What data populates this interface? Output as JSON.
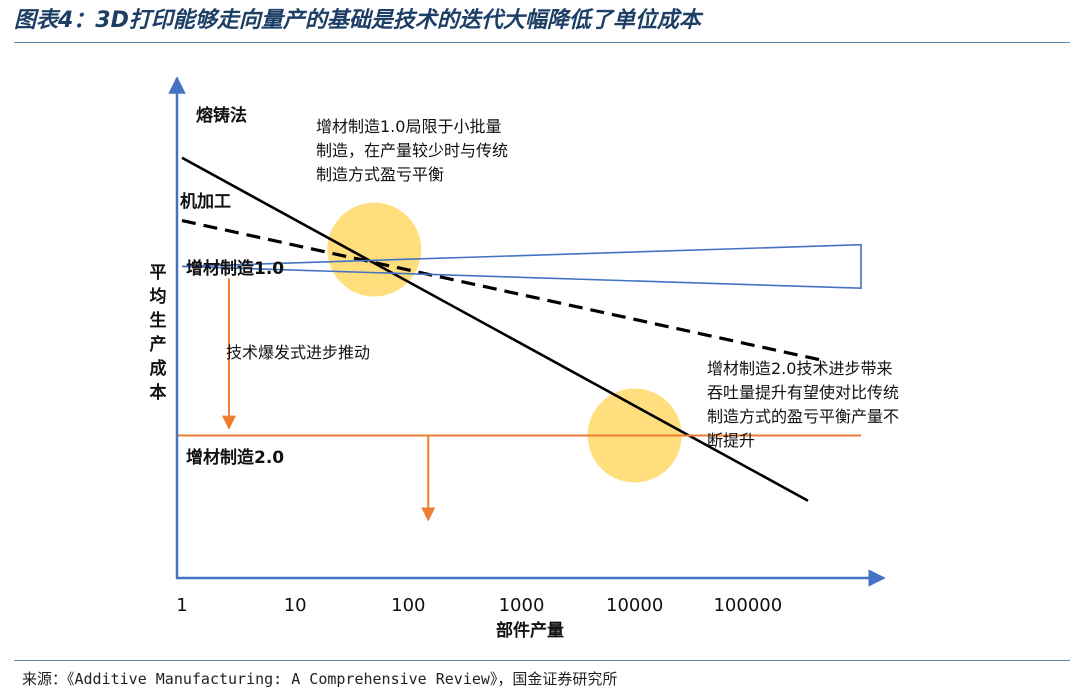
{
  "title": "图表4：3D打印能够走向量产的基础是技术的迭代大幅降低了单位成本",
  "source": "来源：《Additive Manufacturing: A Comprehensive Review》，国金证券研究所",
  "colors": {
    "title": "#1d3f66",
    "axis": "#4472c4",
    "am1": "#4472c4",
    "am2": "#ed7d31",
    "casting": "#000000",
    "machining": "#000000",
    "highlight": "#ffd966"
  },
  "chart_data": {
    "type": "line",
    "xscale": "log",
    "xlabel": "部件产量",
    "ylabel": "平均生产成本",
    "xticks": [
      {
        "value": 1,
        "label": "1"
      },
      {
        "value": 10,
        "label": "10"
      },
      {
        "value": 100,
        "label": "100"
      },
      {
        "value": 1000,
        "label": "1000"
      },
      {
        "value": 10000,
        "label": "10000"
      },
      {
        "value": 100000,
        "label": "100000"
      }
    ],
    "xlim": [
      1,
      1000000
    ],
    "ylim": [
      0,
      100
    ],
    "grid": false,
    "series": [
      {
        "name": "熔铸法",
        "style": "solid",
        "color": "#000000",
        "points": [
          [
            1,
            87
          ],
          [
            340000,
            16
          ]
        ]
      },
      {
        "name": "机加工",
        "style": "dashed",
        "color": "#000000",
        "points": [
          [
            1,
            74
          ],
          [
            470000,
            45
          ]
        ]
      },
      {
        "name": "增材制造1.0",
        "style": "wedge",
        "color": "#4472c4",
        "points": [
          [
            1,
            64.5
          ],
          [
            1000000,
            69
          ],
          [
            1000000,
            60
          ]
        ]
      },
      {
        "name": "增材制造2.0",
        "style": "solid",
        "color": "#ed7d31",
        "points": [
          [
            1,
            29.5
          ],
          [
            1000000,
            29.5
          ]
        ]
      }
    ],
    "highlights": [
      {
        "x": 50,
        "y": 68
      },
      {
        "x": 10000,
        "y": 29.5
      }
    ],
    "arrows": [
      {
        "x": 2.6,
        "y_from": 62,
        "y_to": 31
      },
      {
        "x": 150,
        "y_from": 29.5,
        "y_to": 12
      }
    ],
    "annotations": [
      {
        "id": "am1-note",
        "lines": [
          "增材制造1.0局限于小批量",
          "制造，在产量较少时与传统",
          "制造方式盈亏平衡"
        ]
      },
      {
        "id": "am2-note",
        "lines": [
          "增材制造2.0技术进步带来",
          "吞吐量提升有望使对比传统",
          "制造方式的盈亏平衡产量不",
          "断提升"
        ]
      },
      {
        "id": "tech-note",
        "lines": [
          "技术爆发式进步推动"
        ]
      }
    ]
  }
}
